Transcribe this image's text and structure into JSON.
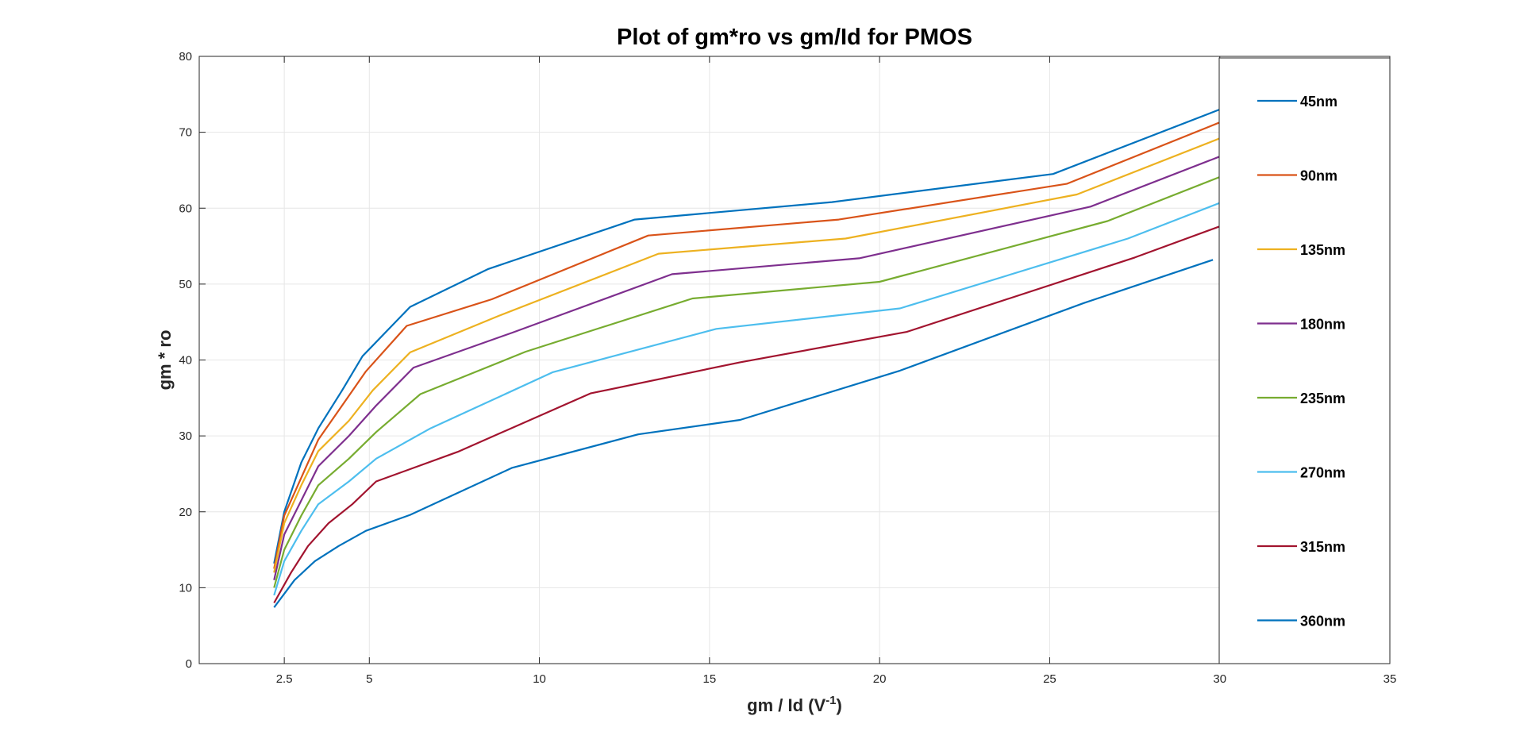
{
  "chart_data": {
    "type": "line",
    "title": "Plot of gm*ro vs gm/Id for PMOS",
    "xlabel": {
      "main": "gm / Id (V",
      "sup": "-1",
      "tail": ")"
    },
    "ylabel": "gm * ro",
    "xlim": [
      0,
      35
    ],
    "ylim": [
      0,
      80
    ],
    "xticks": [
      2.5,
      5,
      10,
      15,
      20,
      25,
      30,
      35
    ],
    "xtick_labels": [
      "2.5",
      "5",
      "10",
      "15",
      "20",
      "25",
      "30",
      "35"
    ],
    "yticks": [
      0,
      10,
      20,
      30,
      40,
      50,
      60,
      70,
      80
    ],
    "ytick_labels": [
      "0",
      "10",
      "20",
      "30",
      "40",
      "50",
      "60",
      "70",
      "80"
    ],
    "grid": true,
    "legend_position": "right",
    "series": [
      {
        "name": "45nm",
        "color": "#0072BD",
        "x": [
          2.2,
          2.5,
          3.0,
          3.5,
          4.2,
          4.8,
          6.2,
          8.5,
          12.8,
          18.6,
          25.1,
          30.0
        ],
        "y": [
          13.2,
          20.0,
          26.5,
          31.0,
          36.0,
          40.5,
          47.0,
          52.0,
          58.5,
          60.8,
          64.5,
          73.0
        ]
      },
      {
        "name": "90nm",
        "color": "#D95319",
        "x": [
          2.2,
          2.5,
          3.0,
          3.5,
          4.2,
          4.9,
          6.1,
          8.6,
          13.2,
          18.8,
          25.5,
          30.0
        ],
        "y": [
          12.5,
          19.5,
          24.5,
          29.5,
          34.0,
          38.5,
          44.5,
          48.0,
          56.4,
          58.5,
          63.2,
          71.3
        ]
      },
      {
        "name": "135nm",
        "color": "#EDB120",
        "x": [
          2.2,
          2.5,
          3.0,
          3.5,
          4.4,
          5.1,
          6.2,
          8.8,
          13.5,
          19.0,
          25.8,
          30.0
        ],
        "y": [
          12.0,
          18.5,
          23.5,
          28.0,
          32.0,
          36.0,
          41.0,
          45.8,
          54.0,
          56.0,
          61.8,
          69.2
        ]
      },
      {
        "name": "180nm",
        "color": "#7E2F8E",
        "x": [
          2.2,
          2.5,
          3.0,
          3.5,
          4.4,
          5.2,
          6.3,
          9.2,
          13.9,
          19.4,
          26.2,
          30.0
        ],
        "y": [
          11.0,
          17.0,
          21.5,
          26.0,
          30.0,
          34.0,
          39.0,
          43.6,
          51.3,
          53.4,
          60.2,
          66.8
        ]
      },
      {
        "name": "235nm",
        "color": "#77AC30",
        "x": [
          2.2,
          2.5,
          3.0,
          3.5,
          4.4,
          5.2,
          6.5,
          9.6,
          14.5,
          20.0,
          26.7,
          30.0
        ],
        "y": [
          10.0,
          15.0,
          19.5,
          23.5,
          27.0,
          30.5,
          35.5,
          41.1,
          48.1,
          50.3,
          58.3,
          64.1
        ]
      },
      {
        "name": "270nm",
        "color": "#4DBEEE",
        "x": [
          2.2,
          2.5,
          3.0,
          3.5,
          4.4,
          5.2,
          6.8,
          10.4,
          15.2,
          20.6,
          27.3,
          30.0
        ],
        "y": [
          9.0,
          13.5,
          17.5,
          21.0,
          24.0,
          27.0,
          31.0,
          38.4,
          44.1,
          46.8,
          56.0,
          60.7
        ]
      },
      {
        "name": "315nm",
        "color": "#A2142F",
        "x": [
          2.2,
          2.7,
          3.2,
          3.8,
          4.5,
          5.2,
          7.6,
          11.5,
          15.9,
          20.8,
          27.5,
          30.0
        ],
        "y": [
          8.0,
          12.0,
          15.5,
          18.5,
          21.0,
          24.0,
          27.9,
          35.6,
          39.7,
          43.7,
          53.5,
          57.6
        ]
      },
      {
        "name": "360nm",
        "color": "#0072BD",
        "x": [
          2.2,
          2.8,
          3.4,
          4.1,
          4.9,
          6.2,
          9.2,
          12.9,
          15.9,
          20.6,
          26.0,
          29.8
        ],
        "y": [
          7.4,
          11.0,
          13.5,
          15.5,
          17.5,
          19.6,
          25.8,
          30.2,
          32.1,
          38.6,
          47.5,
          53.2
        ]
      }
    ]
  }
}
